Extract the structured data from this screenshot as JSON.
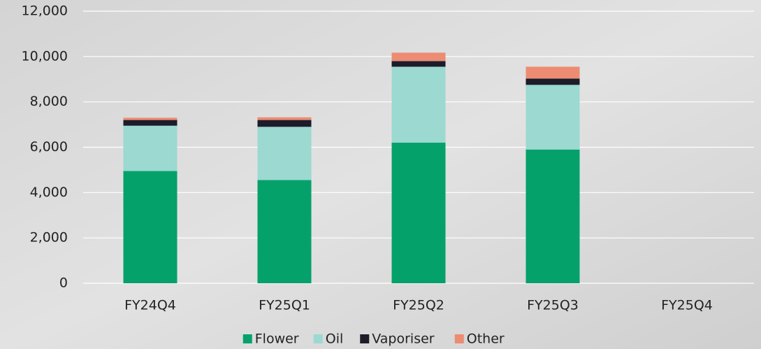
{
  "chart_data": {
    "type": "stacked_bar",
    "categories": [
      "FY24Q4",
      "FY25Q1",
      "FY25Q2",
      "FY25Q3",
      "FY25Q4"
    ],
    "series": [
      {
        "name": "Flower",
        "color": "#05a16b",
        "values": [
          4950,
          4550,
          6200,
          5900,
          null
        ]
      },
      {
        "name": "Oil",
        "color": "#9cd9d0",
        "values": [
          2000,
          2350,
          3350,
          2850,
          null
        ]
      },
      {
        "name": "Vaporiser",
        "color": "#1c1c2a",
        "values": [
          250,
          300,
          250,
          280,
          null
        ]
      },
      {
        "name": "Other",
        "color": "#ec8c72",
        "values": [
          100,
          120,
          370,
          520,
          null
        ]
      }
    ],
    "ylim": [
      0,
      12000
    ],
    "yticks": [
      0,
      {
        "value": 2000,
        "label": "2,000"
      },
      {
        "value": 4000,
        "label": "4,000"
      },
      {
        "value": 6000,
        "label": "6,000"
      },
      {
        "value": 8000,
        "label": "8,000"
      },
      {
        "value": 10000,
        "label": "10,000"
      },
      {
        "value": 12000,
        "label": "12,000"
      }
    ],
    "grid": true,
    "legend": "bottom"
  }
}
